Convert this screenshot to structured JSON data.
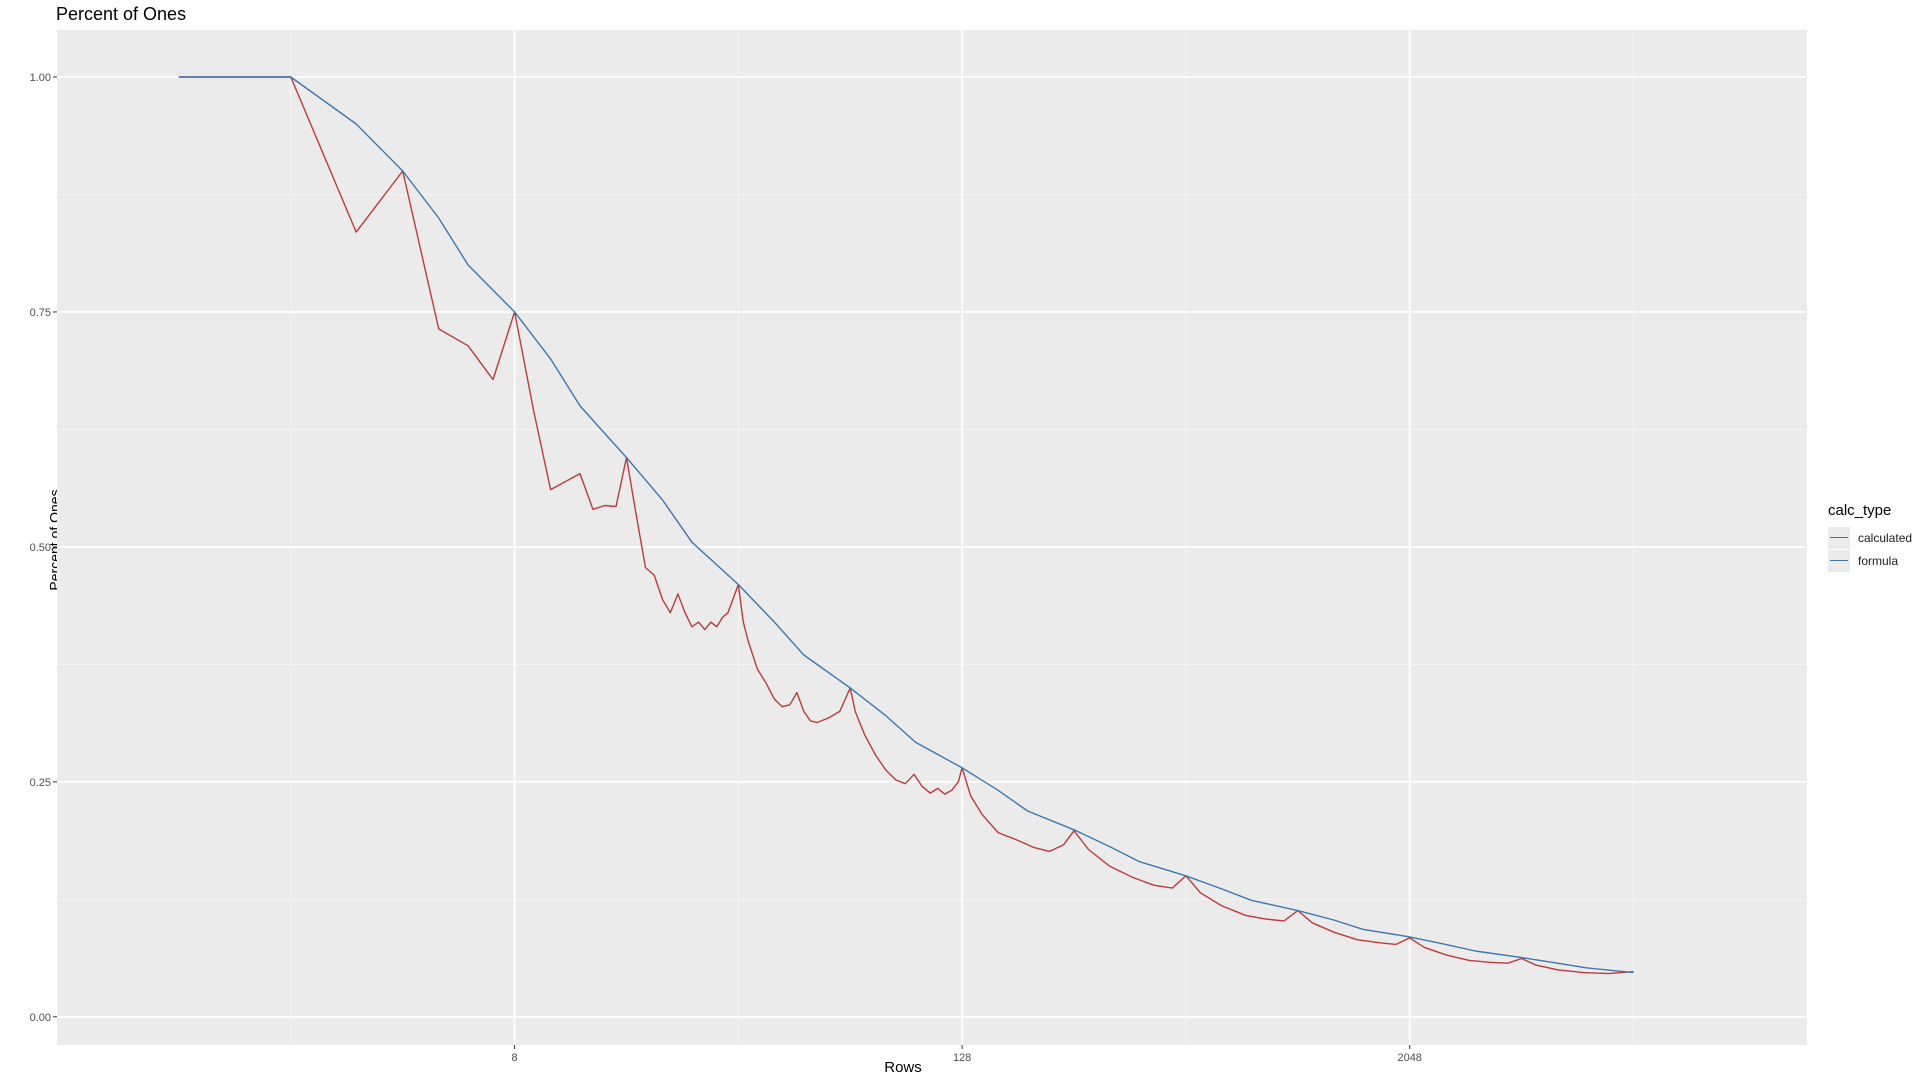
{
  "chart_data": {
    "type": "line",
    "title": "Percent of Ones",
    "xlabel": "Rows",
    "ylabel": "Percent of Ones",
    "x_scale": "log2",
    "x_ticks": [
      8,
      128,
      2048
    ],
    "x_tick_labels": [
      "8",
      "128",
      "2048"
    ],
    "xlim": [
      0.47,
      24000
    ],
    "y_ticks": [
      0.0,
      0.25,
      0.5,
      0.75,
      1.0
    ],
    "y_tick_labels": [
      "0.00",
      "0.25",
      "0.50",
      "0.75",
      "1.00"
    ],
    "ylim": [
      -0.03,
      1.05
    ],
    "grid": true,
    "legend": {
      "title": "calc_type",
      "position": "right"
    },
    "series": [
      {
        "name": "calculated",
        "color": "#c0393a",
        "x": [
          1,
          2,
          3,
          4,
          5,
          6,
          7,
          8,
          9,
          10,
          12,
          13,
          14,
          15,
          16,
          17,
          18,
          19,
          20,
          21,
          22,
          23,
          24,
          25,
          26,
          27,
          28,
          29,
          30,
          31,
          32,
          33,
          34,
          36,
          38,
          40,
          42,
          44,
          46,
          48,
          50,
          52,
          56,
          60,
          64,
          66,
          70,
          75,
          80,
          85,
          90,
          95,
          100,
          105,
          110,
          115,
          120,
          125,
          128,
          135,
          145,
          160,
          180,
          200,
          220,
          240,
          256,
          280,
          320,
          370,
          420,
          470,
          512,
          560,
          640,
          740,
          840,
          940,
          1024,
          1120,
          1280,
          1480,
          1680,
          1880,
          2048,
          2240,
          2560,
          2960,
          3360,
          3760,
          4096,
          4480,
          5120,
          6000,
          7000,
          8192
        ],
        "y": [
          1.0,
          1.0,
          0.835,
          0.9,
          0.732,
          0.714,
          0.678,
          0.75,
          0.645,
          0.561,
          0.578,
          0.54,
          0.544,
          0.543,
          0.595,
          0.534,
          0.478,
          0.47,
          0.444,
          0.43,
          0.45,
          0.43,
          0.415,
          0.42,
          0.412,
          0.42,
          0.415,
          0.425,
          0.43,
          0.445,
          0.46,
          0.42,
          0.4,
          0.37,
          0.355,
          0.338,
          0.33,
          0.332,
          0.345,
          0.325,
          0.315,
          0.313,
          0.318,
          0.325,
          0.35,
          0.325,
          0.3,
          0.278,
          0.262,
          0.252,
          0.248,
          0.258,
          0.245,
          0.238,
          0.243,
          0.237,
          0.241,
          0.25,
          0.265,
          0.235,
          0.215,
          0.196,
          0.188,
          0.18,
          0.176,
          0.183,
          0.198,
          0.178,
          0.16,
          0.148,
          0.14,
          0.137,
          0.15,
          0.132,
          0.118,
          0.108,
          0.104,
          0.102,
          0.113,
          0.1,
          0.09,
          0.082,
          0.079,
          0.077,
          0.084,
          0.074,
          0.066,
          0.06,
          0.058,
          0.057,
          0.062,
          0.055,
          0.05,
          0.047,
          0.046,
          0.048
        ]
      },
      {
        "name": "formula",
        "color": "#3a78b4",
        "x": [
          1,
          2,
          3,
          4,
          5,
          6,
          8,
          10,
          12,
          16,
          20,
          24,
          32,
          40,
          48,
          64,
          80,
          96,
          128,
          160,
          192,
          256,
          320,
          384,
          512,
          640,
          768,
          1024,
          1280,
          1536,
          2048,
          2560,
          3072,
          4096,
          5120,
          6144,
          8192
        ],
        "y": [
          1.0,
          1.0,
          0.95,
          0.9,
          0.85,
          0.8,
          0.75,
          0.7,
          0.65,
          0.595,
          0.55,
          0.505,
          0.46,
          0.42,
          0.385,
          0.35,
          0.32,
          0.292,
          0.265,
          0.241,
          0.219,
          0.199,
          0.181,
          0.165,
          0.15,
          0.136,
          0.124,
          0.113,
          0.103,
          0.093,
          0.085,
          0.077,
          0.07,
          0.063,
          0.057,
          0.052,
          0.047
        ]
      }
    ]
  }
}
